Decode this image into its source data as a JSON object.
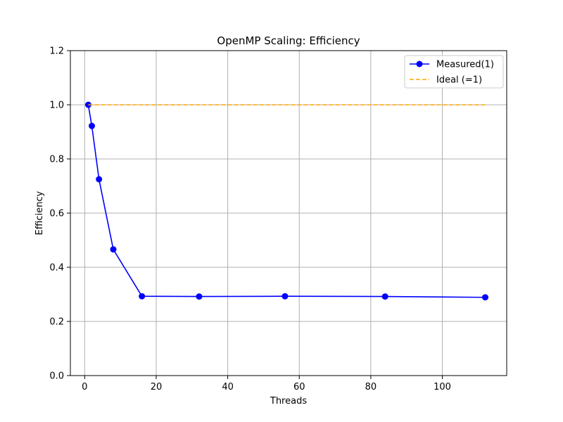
{
  "chart_data": {
    "type": "line",
    "title": "OpenMP Scaling: Efficiency",
    "xlabel": "Threads",
    "ylabel": "Efficiency",
    "xlim": [
      -4,
      118
    ],
    "ylim": [
      0,
      1.2
    ],
    "xticks": [
      0,
      20,
      40,
      60,
      80,
      100
    ],
    "yticks": [
      0.0,
      0.2,
      0.4,
      0.6,
      0.8,
      1.0,
      1.2
    ],
    "xtick_labels": [
      "0",
      "20",
      "40",
      "60",
      "80",
      "100"
    ],
    "ytick_labels": [
      "0.0",
      "0.2",
      "0.4",
      "0.6",
      "0.8",
      "1.0",
      "1.2"
    ],
    "grid": true,
    "legend_position": "top-right",
    "series": [
      {
        "name": "Measured(1)",
        "color": "#0000ff",
        "style": "solid-with-circle-markers",
        "x": [
          1,
          2,
          4,
          8,
          16,
          32,
          56,
          84,
          112
        ],
        "y": [
          1.0,
          0.922,
          0.725,
          0.466,
          0.293,
          0.292,
          0.293,
          0.292,
          0.289
        ]
      },
      {
        "name": "Ideal (=1)",
        "color": "#ffa500",
        "style": "dashed",
        "x": [
          1,
          112
        ],
        "y": [
          1.0,
          1.0
        ]
      }
    ]
  }
}
